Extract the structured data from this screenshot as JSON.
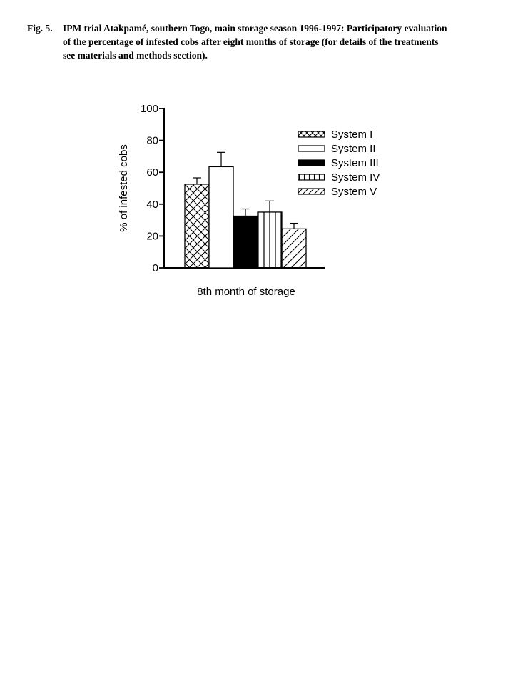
{
  "caption": {
    "label": "Fig. 5.",
    "lines": [
      "IPM trial Atakpamé, southern Togo, main storage season 1996-1997: Participatory evaluation",
      "of the percentage of infested cobs after eight months of storage (for details of the treatments",
      "see materials and methods section)."
    ]
  },
  "chart_data": {
    "type": "bar",
    "categories": [
      "System I",
      "System II",
      "System III",
      "System IV",
      "System V"
    ],
    "values": [
      52.5,
      63.5,
      32.5,
      35,
      24.5
    ],
    "errors_plus": [
      4,
      9,
      4.5,
      7,
      3.5
    ],
    "patterns": [
      "crosshatch",
      "none",
      "solid",
      "vertical",
      "diagonal"
    ],
    "title": "",
    "xlabel": "8th month of storage",
    "ylabel": "% of infested cobs",
    "ylim": [
      0,
      100
    ],
    "yticks": [
      0,
      20,
      40,
      60,
      80,
      100
    ],
    "legend_position": "upper right",
    "grid": false,
    "bar_edge_color": "#000000",
    "background_color": "#ffffff"
  }
}
